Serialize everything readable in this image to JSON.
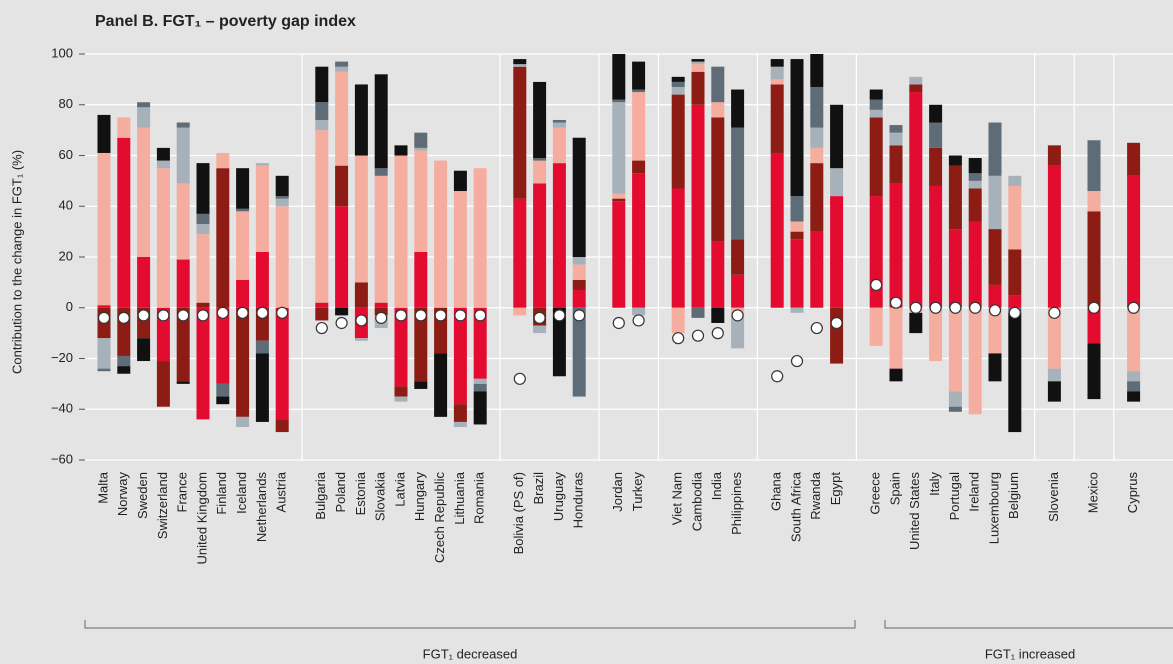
{
  "chart_data": {
    "type": "bar",
    "stacked": true,
    "title": "Panel B.  FGT₁ – poverty gap index",
    "y_label": "Contribution to the change in FGT₁ (%)",
    "group_labels": [
      "FGT₁ decreased",
      "FGT₁ increased"
    ],
    "ylim": [
      -60,
      100
    ],
    "yticks": [
      {
        "value": -60,
        "label": "−60"
      },
      {
        "value": -40,
        "label": "−40"
      },
      {
        "value": -20,
        "label": "−20"
      },
      0,
      20,
      40,
      60,
      80,
      100
    ],
    "grid": true,
    "categories": [
      "Malta",
      "Norway",
      "Sweden",
      "Switzerland",
      "France",
      "United Kingdom",
      "Finland",
      "Iceland",
      "Netherlands",
      "Austria",
      null,
      "Bulgaria",
      "Poland",
      "Estonia",
      "Slovakia",
      "Latvia",
      "Hungary",
      "Czech Republic",
      "Lithuania",
      "Romania",
      null,
      "Bolivia (PS of)",
      "Brazil",
      "Uruguay",
      "Honduras",
      null,
      "Jordan",
      "Turkey",
      null,
      "Viet Nam",
      "Cambodia",
      "India",
      "Philippines",
      null,
      "Ghana",
      "South Africa",
      "Rwanda",
      "Egypt",
      null,
      "Greece",
      "Spain",
      "United States",
      "Italy",
      "Portugal",
      "Ireland",
      "Luxembourg",
      "Belgium",
      null,
      "Slovenia",
      null,
      "Mexico",
      null,
      "Cyprus"
    ],
    "series": [
      {
        "color": "#e30b2f",
        "values": [
          1,
          67,
          20,
          -21,
          19,
          -44,
          -30,
          11,
          22,
          -44,
          null,
          2,
          40,
          -12,
          2,
          -31,
          22,
          0,
          -38,
          -28,
          null,
          43,
          49,
          57,
          7,
          null,
          42,
          53,
          null,
          47,
          80,
          26,
          13,
          null,
          61,
          27,
          30,
          44,
          null,
          44,
          49,
          85,
          48,
          31,
          34,
          9,
          5,
          null,
          56,
          null,
          -14,
          null,
          52
        ]
      },
      {
        "color": "#8c1c14",
        "values": [
          -12,
          -19,
          -12,
          -18,
          -29,
          2,
          55,
          -43,
          -13,
          -5,
          null,
          -5,
          16,
          10,
          -3,
          -4,
          -29,
          -18,
          -7,
          0,
          null,
          52,
          -7,
          0,
          4,
          null,
          1,
          5,
          null,
          37,
          13,
          49,
          14,
          null,
          27,
          3,
          27,
          -22,
          null,
          31,
          15,
          3,
          15,
          25,
          13,
          22,
          18,
          null,
          8,
          null,
          38,
          null,
          13
        ]
      },
      {
        "color": "#f5ad9f",
        "values": [
          60,
          8,
          51,
          55,
          30,
          27,
          6,
          27,
          34,
          40,
          null,
          68,
          37,
          50,
          50,
          60,
          40,
          58,
          46,
          55,
          null,
          -3,
          9,
          14,
          6,
          null,
          2,
          27,
          null,
          -10,
          3,
          6,
          -3,
          null,
          2,
          4,
          6,
          0,
          null,
          -15,
          -24,
          -2,
          -21,
          -33,
          -42,
          -18,
          25,
          null,
          -24,
          null,
          8,
          null,
          -25
        ]
      },
      {
        "color": "#a7b1ba",
        "values": [
          -12,
          0,
          8,
          3,
          22,
          4,
          0,
          -4,
          1,
          3,
          null,
          4,
          2,
          -1,
          -5,
          -2,
          1,
          0,
          -2,
          -2,
          null,
          1,
          -3,
          2,
          3,
          null,
          36,
          -3,
          null,
          3,
          1,
          0,
          -13,
          null,
          5,
          -2,
          8,
          11,
          null,
          3,
          5,
          3,
          0,
          -6,
          3,
          21,
          4,
          null,
          -5,
          null,
          0,
          null,
          -4
        ]
      },
      {
        "color": "#5d6c76",
        "values": [
          -1,
          -4,
          2,
          0,
          2,
          4,
          -5,
          1,
          -5,
          1,
          null,
          7,
          2,
          0,
          3,
          0,
          6,
          0,
          0,
          -3,
          null,
          0,
          1,
          1,
          -35,
          null,
          1,
          1,
          null,
          2,
          -4,
          14,
          44,
          null,
          0,
          10,
          16,
          0,
          null,
          4,
          3,
          0,
          10,
          -2,
          3,
          21,
          -2,
          null,
          0,
          null,
          20,
          null,
          -4
        ]
      },
      {
        "color": "#111111",
        "values": [
          15,
          -3,
          -9,
          5,
          -1,
          20,
          -3,
          16,
          -27,
          8,
          null,
          14,
          -3,
          28,
          37,
          4,
          -3,
          -25,
          8,
          -13,
          null,
          2,
          30,
          -27,
          47,
          null,
          18,
          11,
          null,
          2,
          1,
          -6,
          15,
          null,
          3,
          54,
          13,
          25,
          null,
          4,
          -5,
          -8,
          7,
          4,
          6,
          -11,
          -47,
          null,
          -8,
          null,
          -22,
          null,
          -4
        ]
      }
    ],
    "total_change": [
      -4,
      -4,
      -3,
      -3,
      -3,
      -3,
      -2,
      -2,
      -2,
      -2,
      null,
      -8,
      -6,
      -5,
      -4,
      -3,
      -3,
      -3,
      -3,
      -3,
      null,
      -28,
      -4,
      -3,
      -3,
      null,
      -6,
      -5,
      null,
      -12,
      -11,
      -10,
      -3,
      null,
      -27,
      -21,
      -8,
      -6,
      null,
      9,
      2,
      0,
      0,
      0,
      0,
      -1,
      -2,
      null,
      -2,
      null,
      0,
      null,
      0
    ]
  }
}
